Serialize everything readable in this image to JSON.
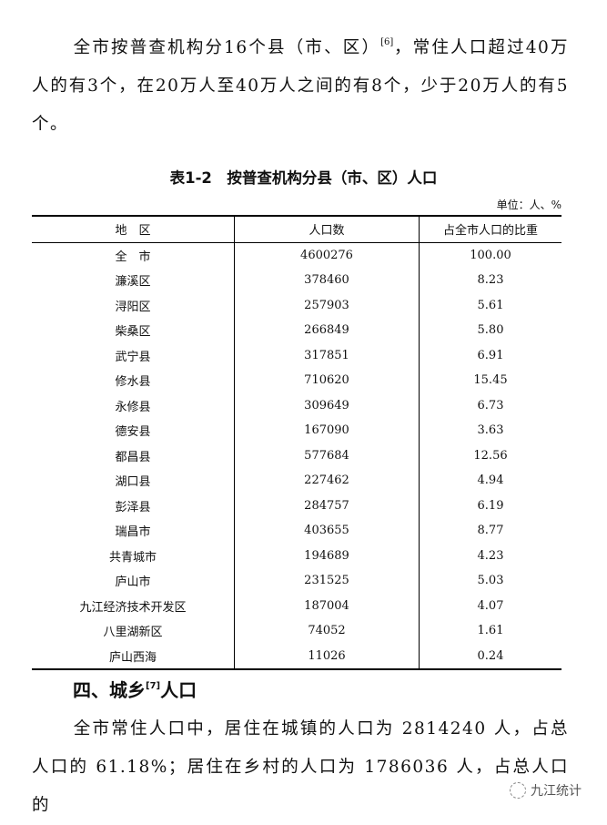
{
  "intro": {
    "text_before": "全市按普查机构分16个县（市、区）",
    "note": "[6]",
    "text_after": "，常住人口超过40万人的有3个，在20万人至40万人之间的有8个，少于20万人的有5个。"
  },
  "table": {
    "title": "表1-2　按普查机构分县（市、区）人口",
    "unit": "单位：人、%",
    "headers": [
      "地　区",
      "人口数",
      "占全市人口的比重"
    ],
    "rows": [
      [
        "全　市",
        "4600276",
        "100.00"
      ],
      [
        "濂溪区",
        "378460",
        "8.23"
      ],
      [
        "浔阳区",
        "257903",
        "5.61"
      ],
      [
        "柴桑区",
        "266849",
        "5.80"
      ],
      [
        "武宁县",
        "317851",
        "6.91"
      ],
      [
        "修水县",
        "710620",
        "15.45"
      ],
      [
        "永修县",
        "309649",
        "6.73"
      ],
      [
        "德安县",
        "167090",
        "3.63"
      ],
      [
        "都昌县",
        "577684",
        "12.56"
      ],
      [
        "湖口县",
        "227462",
        "4.94"
      ],
      [
        "彭泽县",
        "284757",
        "6.19"
      ],
      [
        "瑞昌市",
        "403655",
        "8.77"
      ],
      [
        "共青城市",
        "194689",
        "4.23"
      ],
      [
        "庐山市",
        "231525",
        "5.03"
      ],
      [
        "九江经济技术开发区",
        "187004",
        "4.07"
      ],
      [
        "八里湖新区",
        "74052",
        "1.61"
      ],
      [
        "庐山西海",
        "11026",
        "0.24"
      ]
    ]
  },
  "section": {
    "heading_before": "四、城乡",
    "note": "[7]",
    "heading_after": "人口",
    "text": "全市常住人口中，居住在城镇的人口为 2814240 人，占总人口的 61.18%；居住在乡村的人口为 1786036 人，占总人口的"
  },
  "watermark": {
    "label": "九江统计",
    "icon": "wechat-icon"
  }
}
